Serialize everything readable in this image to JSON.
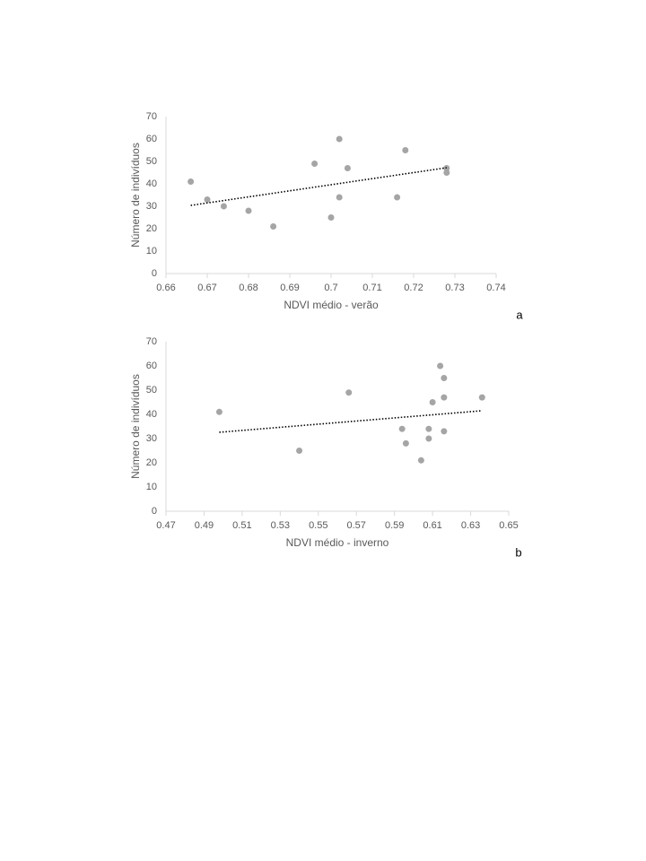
{
  "chart_data": [
    {
      "type": "scatter",
      "label": "a",
      "x_label": "NDVI médio - verão",
      "y_label": "Número de indivíduos",
      "color": "#a5a5a5",
      "x": [
        0.666,
        0.67,
        0.674,
        0.68,
        0.686,
        0.696,
        0.7,
        0.702,
        0.702,
        0.704,
        0.716,
        0.718,
        0.728,
        0.728
      ],
      "values": [
        41,
        33,
        30,
        28,
        21,
        49,
        25,
        60,
        34,
        47,
        34,
        55,
        47,
        45
      ],
      "trendline": {
        "x": [
          0.666,
          0.728
        ],
        "y": [
          30.4,
          47.2
        ]
      },
      "xlim": [
        0.66,
        0.74
      ],
      "xticks": [
        0.66,
        0.67,
        0.68,
        0.69,
        0.7,
        0.71,
        0.72,
        0.73,
        0.74
      ],
      "ylim": [
        0,
        70
      ],
      "yticks": [
        0,
        10,
        20,
        30,
        40,
        50,
        60,
        70
      ]
    },
    {
      "type": "scatter",
      "label": "b",
      "x_label": "NDVI médio - inverno",
      "y_label": "Número de indivíduos",
      "color": "#a5a5a5",
      "x": [
        0.498,
        0.54,
        0.566,
        0.594,
        0.596,
        0.604,
        0.608,
        0.608,
        0.61,
        0.614,
        0.616,
        0.616,
        0.616,
        0.636
      ],
      "values": [
        41,
        25,
        49,
        34,
        28,
        21,
        34,
        30,
        45,
        60,
        55,
        47,
        33,
        47
      ],
      "trendline": {
        "x": [
          0.498,
          0.636
        ],
        "y": [
          32.6,
          41.5
        ]
      },
      "xlim": [
        0.47,
        0.65
      ],
      "xticks": [
        0.47,
        0.49,
        0.51,
        0.53,
        0.55,
        0.57,
        0.59,
        0.61,
        0.63,
        0.65
      ],
      "ylim": [
        0,
        70
      ],
      "yticks": [
        0,
        10,
        20,
        30,
        40,
        50,
        60,
        70
      ]
    }
  ]
}
